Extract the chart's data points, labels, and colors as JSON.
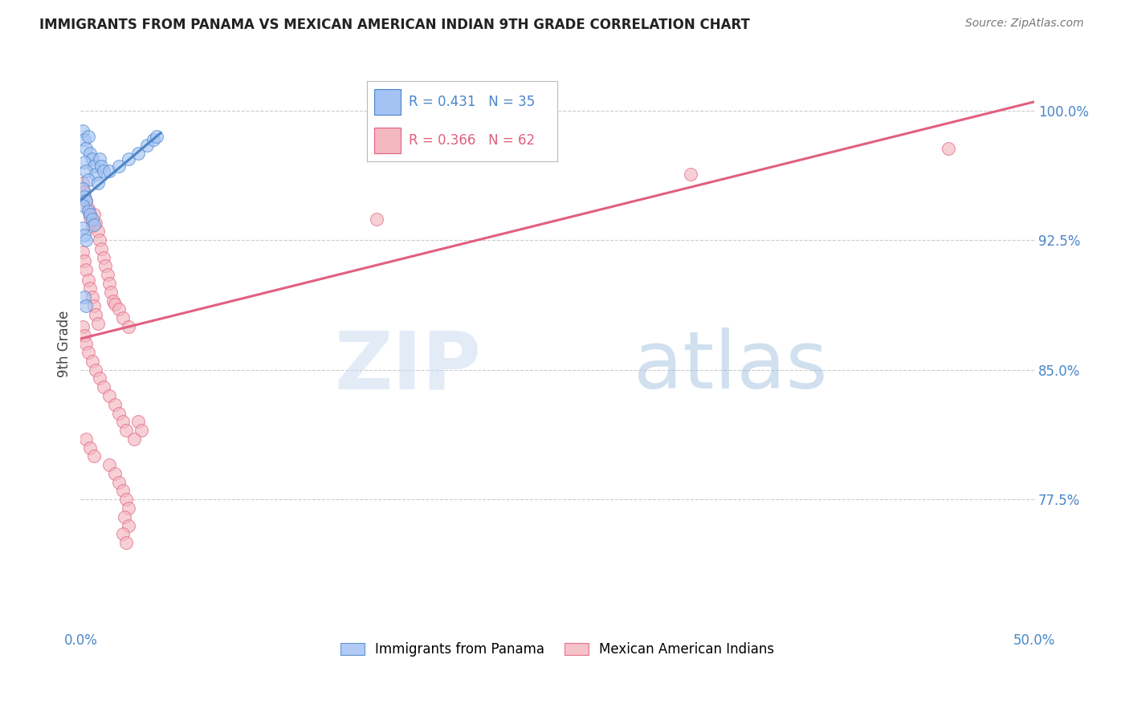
{
  "title": "IMMIGRANTS FROM PANAMA VS MEXICAN AMERICAN INDIAN 9TH GRADE CORRELATION CHART",
  "source": "Source: ZipAtlas.com",
  "ylabel": "9th Grade",
  "ytick_labels": [
    "100.0%",
    "92.5%",
    "85.0%",
    "77.5%"
  ],
  "ytick_values": [
    1.0,
    0.925,
    0.85,
    0.775
  ],
  "xlim": [
    0.0,
    0.5
  ],
  "ylim": [
    0.7,
    1.03
  ],
  "legend_r1_text": "R = 0.431   N = 35",
  "legend_r2_text": "R = 0.366   N = 62",
  "blue_fill": "#a4c2f4",
  "pink_fill": "#f4b8c1",
  "blue_edge": "#4a86c8",
  "pink_edge": "#e06080",
  "line_blue_color": "#4a86c8",
  "line_pink_color": "#e06080",
  "title_color": "#222222",
  "source_color": "#777777",
  "axis_label_color": "#4a86c8",
  "grid_color": "#cccccc",
  "background_color": "#ffffff",
  "panama_points": [
    [
      0.001,
      0.988
    ],
    [
      0.002,
      0.983
    ],
    [
      0.004,
      0.985
    ],
    [
      0.003,
      0.978
    ],
    [
      0.005,
      0.975
    ],
    [
      0.006,
      0.972
    ],
    [
      0.002,
      0.97
    ],
    [
      0.007,
      0.968
    ],
    [
      0.003,
      0.965
    ],
    [
      0.008,
      0.963
    ],
    [
      0.004,
      0.96
    ],
    [
      0.009,
      0.958
    ],
    [
      0.001,
      0.955
    ],
    [
      0.01,
      0.972
    ],
    [
      0.011,
      0.968
    ],
    [
      0.012,
      0.965
    ],
    [
      0.002,
      0.95
    ],
    [
      0.003,
      0.948
    ],
    [
      0.001,
      0.945
    ],
    [
      0.004,
      0.942
    ],
    [
      0.005,
      0.94
    ],
    [
      0.006,
      0.937
    ],
    [
      0.007,
      0.934
    ],
    [
      0.001,
      0.932
    ],
    [
      0.002,
      0.928
    ],
    [
      0.003,
      0.925
    ],
    [
      0.015,
      0.965
    ],
    [
      0.02,
      0.968
    ],
    [
      0.025,
      0.972
    ],
    [
      0.03,
      0.975
    ],
    [
      0.035,
      0.98
    ],
    [
      0.038,
      0.983
    ],
    [
      0.04,
      0.985
    ],
    [
      0.002,
      0.892
    ],
    [
      0.003,
      0.887
    ]
  ],
  "mexican_points": [
    [
      0.001,
      0.958
    ],
    [
      0.002,
      0.953
    ],
    [
      0.003,
      0.948
    ],
    [
      0.004,
      0.943
    ],
    [
      0.005,
      0.938
    ],
    [
      0.006,
      0.933
    ],
    [
      0.007,
      0.94
    ],
    [
      0.008,
      0.935
    ],
    [
      0.009,
      0.93
    ],
    [
      0.01,
      0.925
    ],
    [
      0.011,
      0.92
    ],
    [
      0.012,
      0.915
    ],
    [
      0.001,
      0.918
    ],
    [
      0.002,
      0.913
    ],
    [
      0.003,
      0.908
    ],
    [
      0.013,
      0.91
    ],
    [
      0.014,
      0.905
    ],
    [
      0.015,
      0.9
    ],
    [
      0.016,
      0.895
    ],
    [
      0.017,
      0.89
    ],
    [
      0.018,
      0.888
    ],
    [
      0.004,
      0.902
    ],
    [
      0.005,
      0.897
    ],
    [
      0.006,
      0.892
    ],
    [
      0.007,
      0.887
    ],
    [
      0.008,
      0.882
    ],
    [
      0.009,
      0.877
    ],
    [
      0.02,
      0.885
    ],
    [
      0.022,
      0.88
    ],
    [
      0.025,
      0.875
    ],
    [
      0.001,
      0.875
    ],
    [
      0.002,
      0.87
    ],
    [
      0.003,
      0.865
    ],
    [
      0.004,
      0.86
    ],
    [
      0.006,
      0.855
    ],
    [
      0.008,
      0.85
    ],
    [
      0.01,
      0.845
    ],
    [
      0.012,
      0.84
    ],
    [
      0.015,
      0.835
    ],
    [
      0.018,
      0.83
    ],
    [
      0.02,
      0.825
    ],
    [
      0.022,
      0.82
    ],
    [
      0.024,
      0.815
    ],
    [
      0.003,
      0.81
    ],
    [
      0.005,
      0.805
    ],
    [
      0.007,
      0.8
    ],
    [
      0.015,
      0.795
    ],
    [
      0.018,
      0.79
    ],
    [
      0.02,
      0.785
    ],
    [
      0.022,
      0.78
    ],
    [
      0.024,
      0.775
    ],
    [
      0.025,
      0.77
    ],
    [
      0.023,
      0.765
    ],
    [
      0.025,
      0.76
    ],
    [
      0.022,
      0.755
    ],
    [
      0.024,
      0.75
    ],
    [
      0.03,
      0.82
    ],
    [
      0.032,
      0.815
    ],
    [
      0.028,
      0.81
    ],
    [
      0.155,
      0.937
    ],
    [
      0.32,
      0.963
    ],
    [
      0.455,
      0.978
    ]
  ],
  "blue_line_x": [
    0.0,
    0.042
  ],
  "blue_line_y": [
    0.948,
    0.987
  ],
  "pink_line_x": [
    0.0,
    0.5
  ],
  "pink_line_y": [
    0.868,
    1.005
  ],
  "watermark_zip_color": "#ccddef",
  "watermark_atlas_color": "#99bbdd"
}
